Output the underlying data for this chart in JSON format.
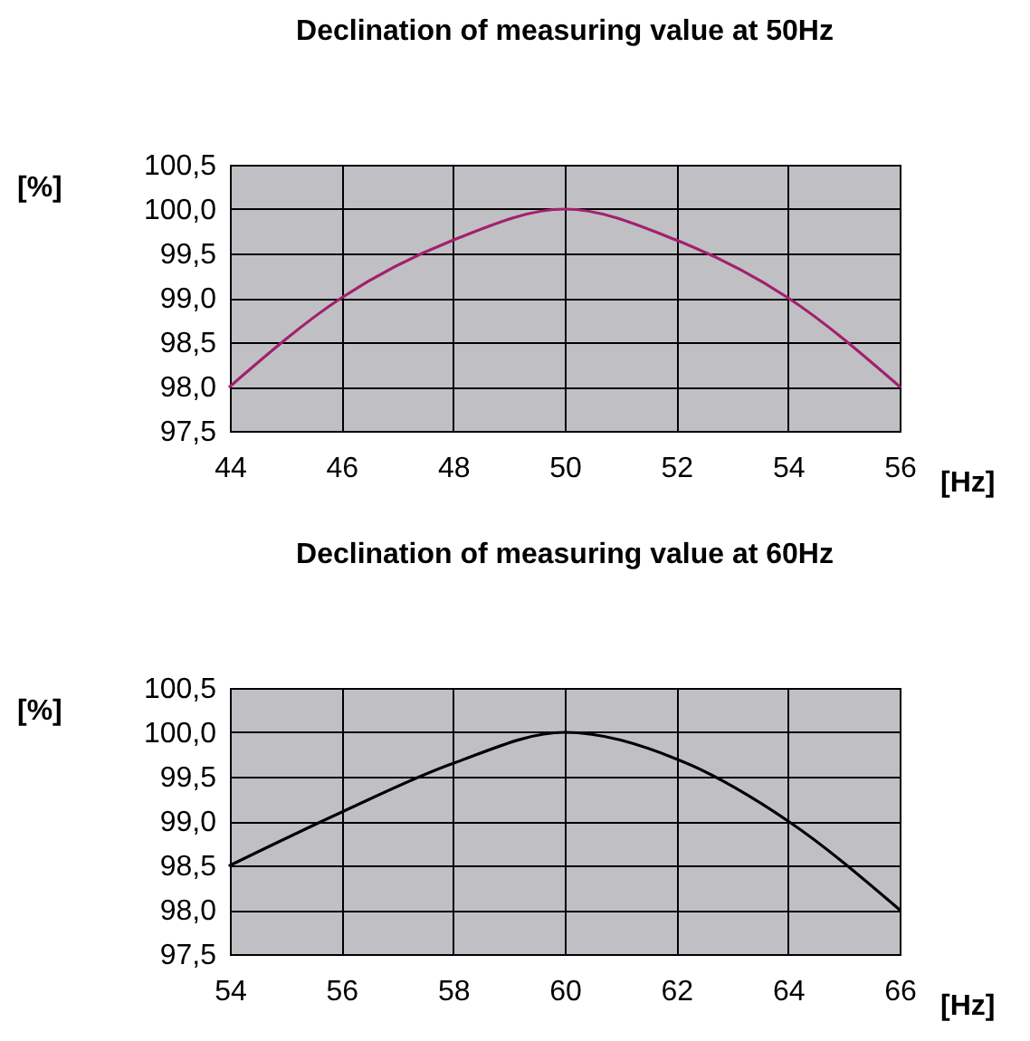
{
  "chart_data": [
    {
      "type": "line",
      "title": "Declination of measuring value at 50Hz",
      "xlabel": "[Hz]",
      "ylabel": "[%]",
      "x": [
        44,
        46,
        48,
        50,
        52,
        54,
        56
      ],
      "series": [
        {
          "color": "#a3206e",
          "values": [
            98.0,
            99.0,
            99.65,
            100.0,
            99.65,
            99.0,
            98.0
          ]
        }
      ],
      "xlim": [
        44,
        56
      ],
      "xticks": [
        44,
        46,
        48,
        50,
        52,
        54,
        56
      ],
      "ylim": [
        97.5,
        100.5
      ],
      "yticks": [
        {
          "value": 97.5,
          "label": "97,5"
        },
        {
          "value": 98.0,
          "label": "98,0"
        },
        {
          "value": 98.5,
          "label": "98,5"
        },
        {
          "value": 99.0,
          "label": "99,0"
        },
        {
          "value": 99.5,
          "label": "99,5"
        },
        {
          "value": 100.0,
          "label": "100,0"
        },
        {
          "value": 100.5,
          "label": "100,5"
        }
      ],
      "grid": true,
      "marker": "none",
      "line_style": "solid"
    },
    {
      "type": "line",
      "title": "Declination of measuring value at 60Hz",
      "xlabel": "[Hz]",
      "ylabel": "[%]",
      "x": [
        54,
        56,
        58,
        60,
        62,
        64,
        66
      ],
      "series": [
        {
          "color": "#000000",
          "values": [
            98.5,
            99.1,
            99.65,
            100.0,
            99.7,
            99.0,
            98.0
          ]
        }
      ],
      "xlim": [
        54,
        66
      ],
      "xticks": [
        54,
        56,
        58,
        60,
        62,
        64,
        66
      ],
      "ylim": [
        97.5,
        100.5
      ],
      "yticks": [
        {
          "value": 97.5,
          "label": "97,5"
        },
        {
          "value": 98.0,
          "label": "98,0"
        },
        {
          "value": 98.5,
          "label": "98,5"
        },
        {
          "value": 99.0,
          "label": "99,0"
        },
        {
          "value": 99.5,
          "label": "99,5"
        },
        {
          "value": 100.0,
          "label": "100,0"
        },
        {
          "value": 100.5,
          "label": "100,5"
        }
      ],
      "grid": true,
      "marker": "none",
      "line_style": "solid"
    }
  ]
}
